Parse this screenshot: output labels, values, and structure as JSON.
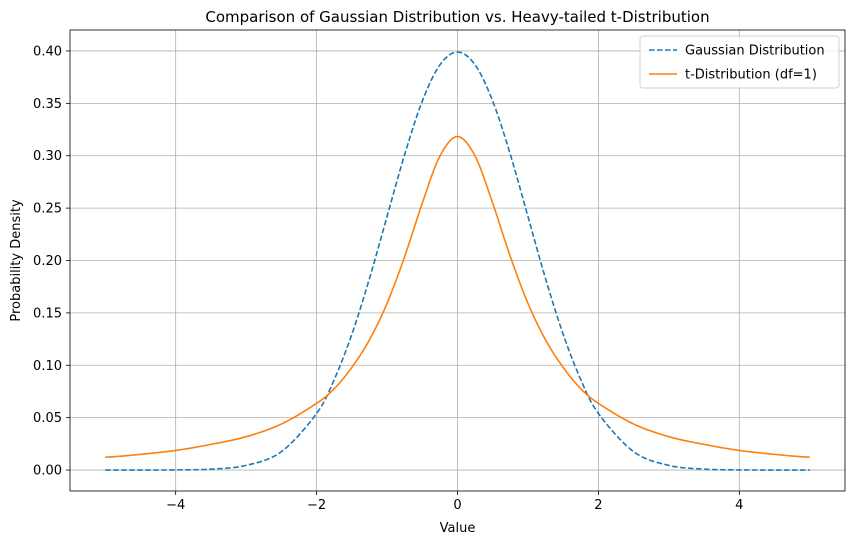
{
  "chart_data": {
    "type": "line",
    "title": "Comparison of Gaussian Distribution vs. Heavy-tailed t-Distribution",
    "xlabel": "Value",
    "ylabel": "Probability Density",
    "xlim": [
      -5.5,
      5.5
    ],
    "ylim": [
      -0.02,
      0.42
    ],
    "xticks": [
      -4,
      -2,
      0,
      2,
      4
    ],
    "xtick_labels": [
      "−4",
      "−2",
      "0",
      "2",
      "4"
    ],
    "yticks": [
      0.0,
      0.05,
      0.1,
      0.15,
      0.2,
      0.25,
      0.3,
      0.35,
      0.4
    ],
    "ytick_labels": [
      "0.00",
      "0.05",
      "0.10",
      "0.15",
      "0.20",
      "0.25",
      "0.30",
      "0.35",
      "0.40"
    ],
    "grid": true,
    "legend_position": "top-right",
    "x": [
      -5.0,
      -4.5,
      -4.0,
      -3.5,
      -3.0,
      -2.5,
      -2.0,
      -1.75,
      -1.5,
      -1.25,
      -1.0,
      -0.75,
      -0.5,
      -0.25,
      0.0,
      0.25,
      0.5,
      0.75,
      1.0,
      1.25,
      1.5,
      1.75,
      2.0,
      2.5,
      3.0,
      3.5,
      4.0,
      4.5,
      5.0
    ],
    "series": [
      {
        "name": "Gaussian Distribution",
        "style": "dashed",
        "color": "#1f77b4",
        "values": [
          1.5e-06,
          1.6e-05,
          0.000134,
          0.000873,
          0.004432,
          0.017528,
          0.053991,
          0.086277,
          0.129518,
          0.182649,
          0.241971,
          0.301137,
          0.352065,
          0.386668,
          0.398942,
          0.386668,
          0.352065,
          0.301137,
          0.241971,
          0.182649,
          0.129518,
          0.086277,
          0.053991,
          0.017528,
          0.004432,
          0.000873,
          0.000134,
          1.6e-05,
          1.5e-06
        ]
      },
      {
        "name": "t-Distribution (df=1)",
        "style": "solid",
        "color": "#ff7f0e",
        "values": [
          0.012243,
          0.014972,
          0.018724,
          0.024485,
          0.031831,
          0.043905,
          0.063662,
          0.077643,
          0.097942,
          0.124224,
          0.159155,
          0.203718,
          0.254648,
          0.299585,
          0.31831,
          0.299585,
          0.254648,
          0.203718,
          0.159155,
          0.124224,
          0.097942,
          0.077643,
          0.063662,
          0.043905,
          0.031831,
          0.024485,
          0.018724,
          0.014972,
          0.012243
        ]
      }
    ]
  }
}
